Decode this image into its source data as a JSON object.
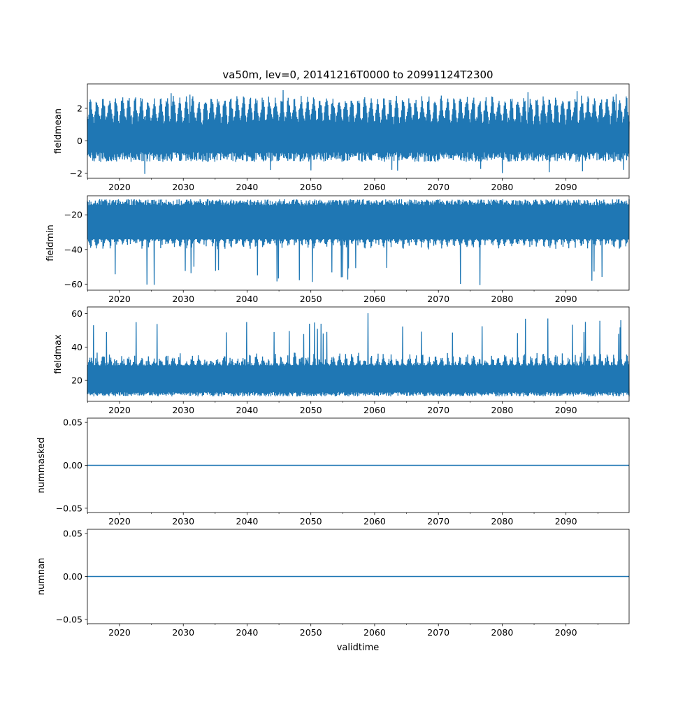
{
  "figure": {
    "title": "va50m, lev=0, 20141216T0000 to 20991124T2300",
    "xlabel": "validtime"
  },
  "chart_data": [
    {
      "type": "line",
      "ylabel": "fieldmean",
      "xlim": [
        2014.96,
        2099.9
      ],
      "ylim": [
        -2.3,
        3.5
      ],
      "xticks": [
        "2020",
        "2030",
        "2040",
        "2050",
        "2060",
        "2070",
        "2080",
        "2090"
      ],
      "yticks": [
        "−2",
        "0",
        "2"
      ],
      "series": [
        {
          "color": "#1f77b4",
          "pattern": "dense-hourly",
          "range": [
            -2.05,
            3.3
          ],
          "typical_range": [
            -1.0,
            1.9
          ],
          "yearly_peak": 2.3
        }
      ]
    },
    {
      "type": "line",
      "ylabel": "fieldmin",
      "xlim": [
        2014.96,
        2099.9
      ],
      "ylim": [
        -63.5,
        -9.0
      ],
      "xticks": [
        "2020",
        "2030",
        "2040",
        "2050",
        "2060",
        "2070",
        "2080",
        "2090"
      ],
      "yticks": [
        "−60",
        "−40",
        "−20"
      ],
      "series": [
        {
          "color": "#1f77b4",
          "pattern": "dense-hourly",
          "range": [
            -61.5,
            -11.0
          ],
          "typical_range": [
            -34.0,
            -14.0
          ],
          "yearly_spike": -40.0
        }
      ]
    },
    {
      "type": "line",
      "ylabel": "fieldmax",
      "xlim": [
        2014.96,
        2099.9
      ],
      "ylim": [
        7.5,
        64.0
      ],
      "xticks": [
        "2020",
        "2030",
        "2040",
        "2050",
        "2060",
        "2070",
        "2080",
        "2090"
      ],
      "yticks": [
        "20",
        "40",
        "60"
      ],
      "series": [
        {
          "color": "#1f77b4",
          "pattern": "dense-hourly",
          "range": [
            9.0,
            61.5
          ],
          "typical_range": [
            11.0,
            29.0
          ],
          "yearly_spike": 37.0
        }
      ]
    },
    {
      "type": "line",
      "ylabel": "nummasked",
      "xlim": [
        2014.96,
        2099.9
      ],
      "ylim": [
        -0.055,
        0.055
      ],
      "xticks": [
        "2020",
        "2030",
        "2040",
        "2050",
        "2060",
        "2070",
        "2080",
        "2090"
      ],
      "yticks": [
        "−0.05",
        "0.00",
        "0.05"
      ],
      "series": [
        {
          "color": "#1f77b4",
          "constant": 0.0
        }
      ]
    },
    {
      "type": "line",
      "ylabel": "numnan",
      "xlim": [
        2014.96,
        2099.9
      ],
      "ylim": [
        -0.055,
        0.055
      ],
      "xticks": [
        "2020",
        "2030",
        "2040",
        "2050",
        "2060",
        "2070",
        "2080",
        "2090"
      ],
      "yticks": [
        "−0.05",
        "0.00",
        "0.05"
      ],
      "series": [
        {
          "color": "#1f77b4",
          "constant": 0.0
        }
      ]
    }
  ]
}
